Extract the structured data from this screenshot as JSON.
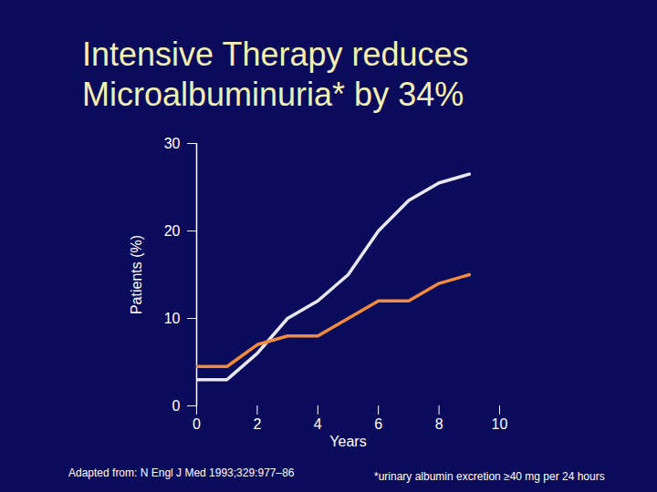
{
  "chart_data": {
    "type": "line",
    "title": "Intensive Therapy reduces Microalbuminuria* by 34%",
    "x_label": "Years",
    "y_label": "Patients (%)",
    "x": [
      0,
      1,
      2,
      3,
      4,
      5,
      6,
      7,
      8,
      9
    ],
    "series": [
      {
        "color": "#e8e8f2",
        "values": [
          3,
          3,
          6,
          10,
          12,
          15,
          20,
          23.5,
          25.5,
          26.5
        ]
      },
      {
        "color": "#f08a3c",
        "values": [
          4.5,
          4.5,
          7,
          8,
          8,
          10,
          12,
          12,
          14,
          15
        ]
      }
    ],
    "xlim": [
      0,
      10
    ],
    "xticks": [
      0,
      2,
      4,
      6,
      8,
      10
    ],
    "ylim": [
      0,
      30
    ],
    "yticks": [
      0,
      10,
      20,
      30
    ],
    "grid": false,
    "source": "Adapted from: N Engl J Med 1993;329:977–86",
    "footnote": "*urinary albumin excretion ≥40 mg per 24 hours"
  }
}
